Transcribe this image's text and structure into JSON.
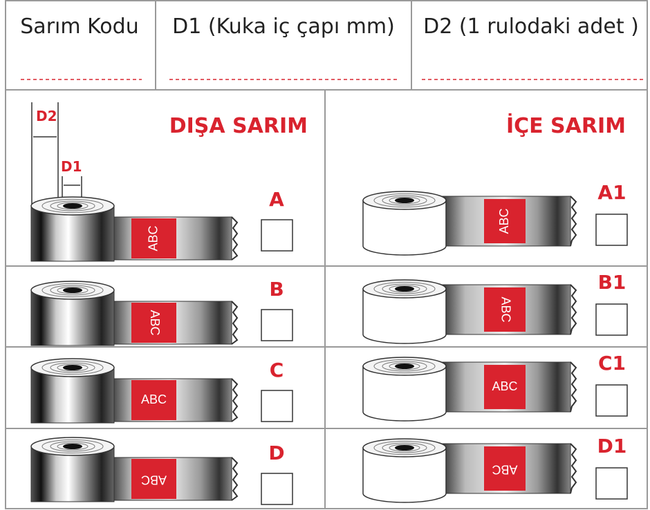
{
  "header": {
    "columns": [
      "Sarım Kodu",
      "D1 (Kuka iç çapı mm)",
      "D2 (1 rulodaki adet )"
    ]
  },
  "outside": {
    "title": "DIŞA SARIM",
    "dimension_labels": [
      "D2",
      "D1"
    ],
    "options": [
      {
        "code": "A",
        "print": "ABC"
      },
      {
        "code": "B",
        "print": "ABC"
      },
      {
        "code": "C",
        "print": "ABC"
      },
      {
        "code": "D",
        "print": "ABC"
      }
    ]
  },
  "inside": {
    "title": "İÇE SARIM",
    "options": [
      {
        "code": "A1",
        "print": "ABC"
      },
      {
        "code": "B1",
        "print": "ABC"
      },
      {
        "code": "C1",
        "print": "ABC"
      },
      {
        "code": "D1",
        "print": "ABC"
      }
    ]
  }
}
